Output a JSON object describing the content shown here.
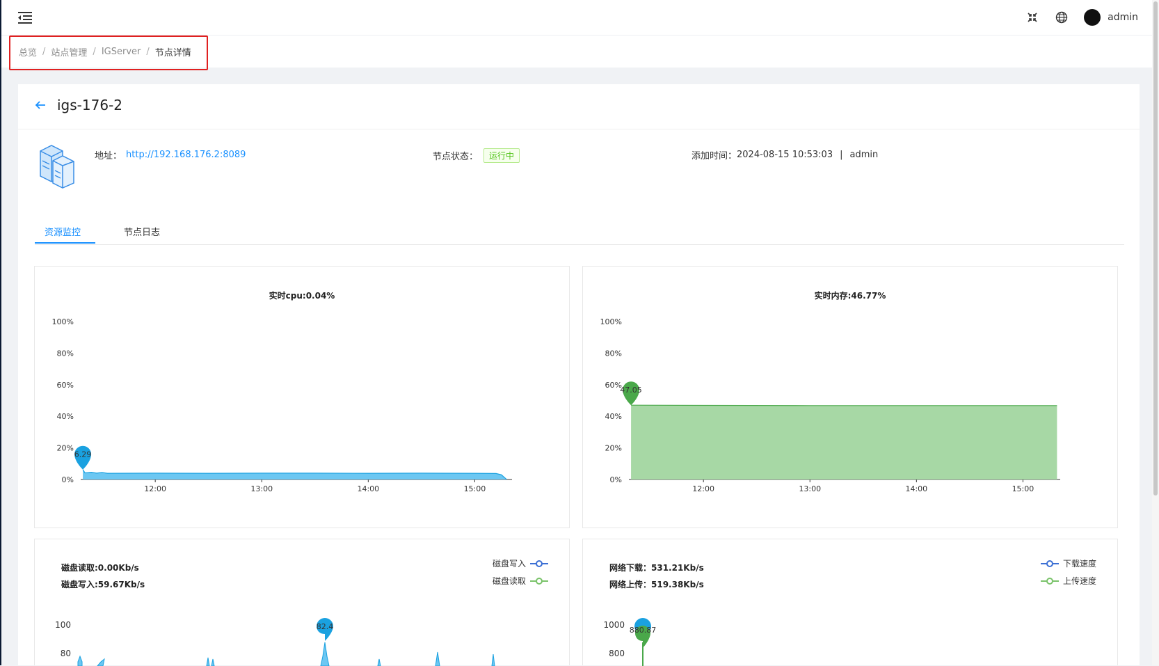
{
  "header": {
    "user_name": "admin",
    "menu_icon": "menu-fold-icon",
    "fullscreen_icon": "fullscreen-exit-icon",
    "language_icon": "globe-icon"
  },
  "breadcrumb": {
    "items": [
      "总览",
      "站点管理",
      "IGServer",
      "节点详情"
    ],
    "separator": "/"
  },
  "node": {
    "name": "igs-176-2",
    "address_label": "地址：",
    "address": "http://192.168.176.2:8089",
    "status_label": "节点状态：",
    "status": "运行中",
    "added_label": "添加时间：",
    "added_time": "2024-08-15 10:53:03",
    "added_by": "admin"
  },
  "tabs": [
    {
      "label": "资源监控",
      "active": true
    },
    {
      "label": "节点日志",
      "active": false
    }
  ],
  "colors": {
    "primary": "#1890ff",
    "cpu_fill": "#6cc7f2",
    "cpu_line": "#1aa1e0",
    "mem_fill": "#a7d8a5",
    "mem_line": "#4aa84a",
    "legend_blue": "#3b6fd4",
    "legend_green": "#7ac36a",
    "highlight_box": "#e02020"
  },
  "chart_data": [
    {
      "id": "cpu",
      "type": "area",
      "title": "实时cpu:0.04%",
      "y_ticks": [
        "0%",
        "20%",
        "40%",
        "60%",
        "80%",
        "100%"
      ],
      "ylim": [
        0,
        100
      ],
      "x_ticks": [
        "12:00",
        "13:00",
        "14:00",
        "15:00"
      ],
      "x_tick_values": [
        12,
        13,
        14,
        15
      ],
      "xlim": [
        11.3,
        15.35
      ],
      "x": [
        11.32,
        11.34,
        11.4,
        11.45,
        11.5,
        11.55,
        12.0,
        12.5,
        13.0,
        13.5,
        14.0,
        14.5,
        15.0,
        15.2,
        15.25,
        15.3
      ],
      "values": [
        6.29,
        4.2,
        4.6,
        4.0,
        4.5,
        3.9,
        4.0,
        3.9,
        4.0,
        4.0,
        3.9,
        4.0,
        3.9,
        3.8,
        3.0,
        0.04
      ],
      "max_marker": {
        "x": 11.32,
        "value": 6.29,
        "label": "6.29"
      }
    },
    {
      "id": "memory",
      "type": "area",
      "title": "实时内存:46.77%",
      "y_ticks": [
        "0%",
        "20%",
        "40%",
        "60%",
        "80%",
        "100%"
      ],
      "ylim": [
        0,
        100
      ],
      "x_ticks": [
        "12:00",
        "13:00",
        "14:00",
        "15:00"
      ],
      "x_tick_values": [
        12,
        13,
        14,
        15
      ],
      "xlim": [
        11.3,
        15.35
      ],
      "x": [
        11.32,
        12.0,
        13.0,
        14.0,
        15.0,
        15.32
      ],
      "values": [
        47.05,
        46.9,
        46.8,
        46.8,
        46.8,
        46.77
      ],
      "max_marker": {
        "x": 11.32,
        "value": 47.05,
        "label": "47.05"
      }
    },
    {
      "id": "disk",
      "type": "line",
      "stats": [
        "磁盘读取:0.00Kb/s",
        "磁盘写入:59.67Kb/s"
      ],
      "y_ticks": [
        "80",
        "100"
      ],
      "series": [
        {
          "name": "磁盘写入",
          "color": "#3b6fd4"
        },
        {
          "name": "磁盘读取",
          "color": "#7ac36a"
        }
      ],
      "max_marker": {
        "value": 82.4,
        "label": "82.4"
      }
    },
    {
      "id": "network",
      "type": "line",
      "stats": [
        "网络下载：531.21Kb/s",
        "网络上传：519.38Kb/s"
      ],
      "y_ticks": [
        "800",
        "1000"
      ],
      "series": [
        {
          "name": "下载速度",
          "color": "#3b6fd4"
        },
        {
          "name": "上传速度",
          "color": "#7ac36a"
        }
      ],
      "max_marker": {
        "label": "880.87"
      }
    }
  ]
}
